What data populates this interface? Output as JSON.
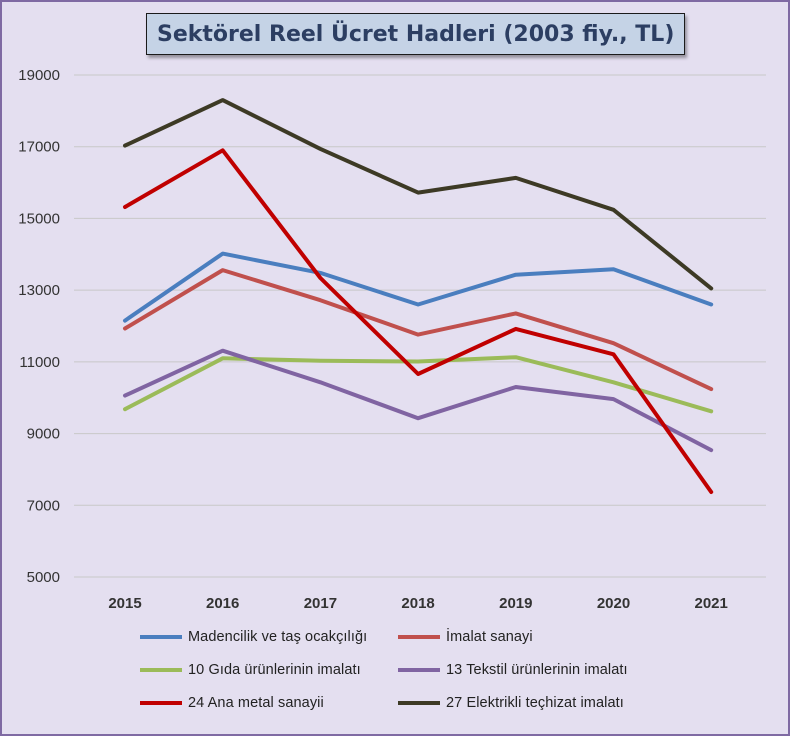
{
  "chart_data": {
    "type": "line",
    "title": "Sektörel Reel  Ücret Hadleri (2003 fiy., TL)",
    "xlabel": "",
    "ylabel": "",
    "x": [
      "2015",
      "2016",
      "2017",
      "2018",
      "2019",
      "2020",
      "2021"
    ],
    "ylim": [
      5000,
      19000
    ],
    "yticks": [
      5000,
      7000,
      9000,
      11000,
      13000,
      15000,
      17000,
      19000
    ],
    "grid": true,
    "legend_position": "bottom",
    "series": [
      {
        "name": "Madencilik ve taş ocakçılığı",
        "color": "#4a7ebf",
        "values": [
          12150,
          14020,
          13480,
          12600,
          13430,
          13580,
          12600
        ]
      },
      {
        "name": "İmalat sanayi",
        "color": "#c0504d",
        "values": [
          11930,
          13560,
          12720,
          11760,
          12350,
          11520,
          10240
        ]
      },
      {
        "name": "10 Gıda ürünlerinin imalatı",
        "color": "#9bbb59",
        "values": [
          9680,
          11100,
          11030,
          11010,
          11130,
          10430,
          9620
        ]
      },
      {
        "name": "13 Tekstil ürünlerinin imalatı",
        "color": "#8064a2",
        "values": [
          10060,
          11310,
          10430,
          9430,
          10300,
          9960,
          8540
        ]
      },
      {
        "name": "24 Ana metal sanayii",
        "color": "#c00000",
        "values": [
          15320,
          16900,
          13340,
          10660,
          11920,
          11210,
          7370
        ]
      },
      {
        "name": "27 Elektrikli teçhizat imalatı",
        "color": "#3d3a25",
        "values": [
          17030,
          18300,
          16940,
          15720,
          16130,
          15240,
          13050
        ]
      }
    ]
  }
}
